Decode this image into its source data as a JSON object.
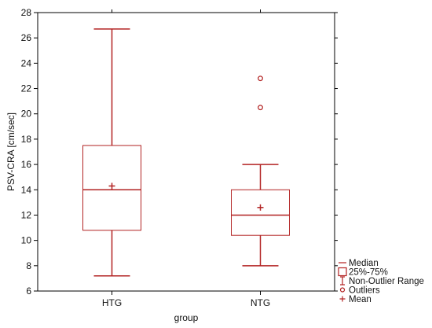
{
  "chart_data": {
    "type": "box",
    "xlabel": "group",
    "ylabel": "PSV-CRA [cm/sec]",
    "ylim": [
      6,
      28
    ],
    "yticks": [
      6,
      8,
      10,
      12,
      14,
      16,
      18,
      20,
      22,
      24,
      26,
      28
    ],
    "categories": [
      "HTG",
      "NTG"
    ],
    "grid": false,
    "legend_position": "bottom-right",
    "color": "#b22222",
    "boxes": [
      {
        "category": "HTG",
        "whisker_low": 7.2,
        "q1": 10.8,
        "median": 14.0,
        "q3": 17.5,
        "whisker_high": 26.7,
        "mean": 14.3,
        "outliers": []
      },
      {
        "category": "NTG",
        "whisker_low": 8.0,
        "q1": 10.4,
        "median": 12.0,
        "q3": 14.0,
        "whisker_high": 16.0,
        "mean": 12.6,
        "outliers": [
          20.5,
          22.8
        ]
      }
    ],
    "legend": [
      {
        "symbol": "median",
        "label": "Median"
      },
      {
        "symbol": "box",
        "label": "25%-75%"
      },
      {
        "symbol": "whisker",
        "label": "Non-Outlier Range"
      },
      {
        "symbol": "outlier",
        "label": "Outliers"
      },
      {
        "symbol": "mean",
        "label": "Mean"
      }
    ]
  }
}
